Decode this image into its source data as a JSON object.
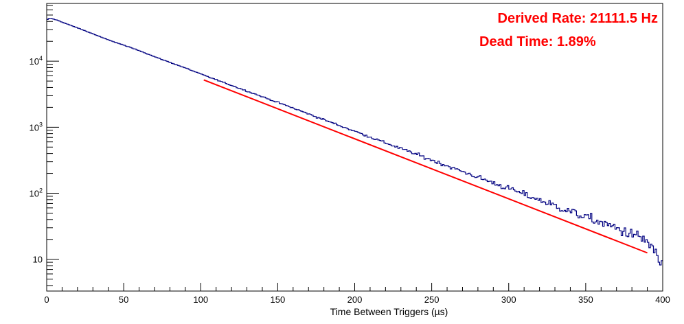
{
  "chart_data": {
    "type": "line",
    "title": "",
    "xlabel": "Time Between Triggers (µs)",
    "ylabel": "",
    "xlim": [
      0,
      400
    ],
    "ylim": [
      3.3,
      75000
    ],
    "y_scale": "log",
    "grid": false,
    "x_ticks": [
      {
        "value": 0,
        "label": "0"
      },
      {
        "value": 50,
        "label": "50"
      },
      {
        "value": 100,
        "label": "100"
      },
      {
        "value": 150,
        "label": "150"
      },
      {
        "value": 200,
        "label": "200"
      },
      {
        "value": 250,
        "label": "250"
      },
      {
        "value": 300,
        "label": "300"
      },
      {
        "value": 350,
        "label": "350"
      },
      {
        "value": 400,
        "label": "400"
      }
    ],
    "y_ticks": [
      {
        "value": 10,
        "base": "10",
        "exp": ""
      },
      {
        "value": 100,
        "base": "10",
        "exp": "2"
      },
      {
        "value": 1000,
        "base": "10",
        "exp": "3"
      },
      {
        "value": 10000,
        "base": "10",
        "exp": "4"
      }
    ],
    "series": [
      {
        "kind": "histogram",
        "color": "#000080",
        "x": [
          0,
          2,
          5,
          8,
          10,
          20,
          30,
          40,
          50,
          60,
          70,
          80,
          90,
          100,
          120,
          140,
          160,
          180,
          200,
          220,
          240,
          260,
          280,
          300,
          320,
          340,
          360,
          380,
          390,
          395,
          400
        ],
        "y": [
          42000,
          45000,
          43000,
          41000,
          39000,
          32000,
          26000,
          21000,
          17500,
          14500,
          11700,
          9600,
          7900,
          6400,
          4300,
          2900,
          1950,
          1300,
          870,
          580,
          390,
          260,
          175,
          118,
          79,
          53,
          36,
          24,
          19,
          12,
          8
        ]
      },
      {
        "kind": "fit",
        "color": "#ff0000",
        "x": [
          102,
          390
        ],
        "y": [
          5200,
          12.5
        ]
      }
    ]
  },
  "annotations": {
    "rate": "Derived Rate: 21111.5 Hz",
    "dead_time": "Dead Time: 1.89%",
    "color": "#ff0000"
  }
}
